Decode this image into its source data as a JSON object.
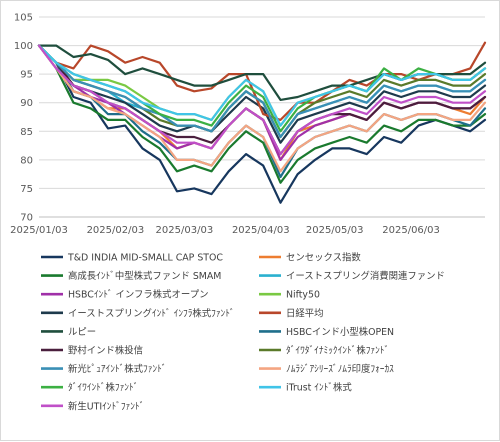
{
  "chart_data": {
    "type": "line",
    "title": "",
    "xlabel": "",
    "ylabel": "",
    "ylim": [
      70,
      105
    ],
    "yticks": [
      70,
      75,
      80,
      85,
      90,
      95,
      100,
      105
    ],
    "xlim": [
      "2025-01-03",
      "2025-07-03"
    ],
    "xticks": [
      "2025/01/03",
      "2025/02/03",
      "2025/03/03",
      "2025/04/03",
      "2025/05/03",
      "2025/06/03"
    ],
    "grid": "horizontal",
    "legend_position": "bottom",
    "x": [
      "2025-01-03",
      "2025-01-10",
      "2025-01-17",
      "2025-01-24",
      "2025-01-31",
      "2025-02-07",
      "2025-02-14",
      "2025-02-21",
      "2025-02-28",
      "2025-03-07",
      "2025-03-14",
      "2025-03-21",
      "2025-03-28",
      "2025-04-04",
      "2025-04-11",
      "2025-04-18",
      "2025-04-25",
      "2025-05-02",
      "2025-05-09",
      "2025-05-16",
      "2025-05-23",
      "2025-05-30",
      "2025-06-06",
      "2025-06-13",
      "2025-06-20",
      "2025-06-27",
      "2025-07-03"
    ],
    "series": [
      {
        "name": "T&D INDIA MID-SMALL CAP STOC",
        "color": "#17375e",
        "values": [
          100,
          97,
          91,
          90,
          85.5,
          86,
          82,
          80,
          74.5,
          75,
          74,
          78,
          81,
          79,
          72.5,
          77.5,
          80,
          82,
          82,
          81,
          84,
          83,
          86,
          87,
          86,
          85,
          87
        ]
      },
      {
        "name": "センセックス指数",
        "color": "#ed7d31",
        "values": [
          100,
          97,
          92,
          91,
          89,
          89,
          87,
          85,
          82,
          83,
          82,
          86,
          89,
          87,
          80,
          85,
          86,
          87,
          88,
          87,
          90,
          89,
          90,
          90,
          89,
          88,
          91
        ]
      },
      {
        "name": "高成長ｲﾝﾄﾞ中型株式ファンド SMAM",
        "color": "#1a7a2e",
        "values": [
          100,
          96,
          90,
          89,
          87,
          87,
          84,
          82,
          78,
          79,
          78,
          82,
          85,
          83,
          76,
          80,
          82,
          83,
          84,
          83,
          86,
          85,
          87,
          87,
          86,
          86,
          88
        ]
      },
      {
        "name": "イーストスプリング消費関連ファンド",
        "color": "#2ab0cf",
        "values": [
          100,
          97,
          94,
          93,
          92,
          90,
          89,
          88,
          86,
          86,
          85,
          89,
          92,
          90,
          84,
          88,
          89,
          90,
          91,
          90,
          93,
          92,
          93,
          93,
          92,
          92,
          94
        ]
      },
      {
        "name": "HSBCｲﾝﾄﾞ インフラ株式オープン",
        "color": "#a030a8",
        "values": [
          100,
          96,
          93,
          91,
          90,
          88,
          86,
          84,
          82,
          83,
          82,
          86,
          89,
          87,
          80,
          84,
          86,
          87,
          88,
          87,
          90,
          89,
          90,
          90,
          89,
          89,
          91
        ]
      },
      {
        "name": "Nifty50",
        "color": "#7ac943",
        "values": [
          100,
          97,
          94,
          94,
          94,
          93,
          91,
          89,
          88,
          88,
          87,
          91,
          94,
          92,
          86,
          90,
          91,
          92,
          93,
          92,
          95,
          94,
          95,
          95,
          94,
          94,
          96
        ]
      },
      {
        "name": "イーストスプリングｲﾝﾄﾞ ｲﾝﾌﾗ株式ﾌｧﾝﾄﾞ",
        "color": "#1e3a4c",
        "values": [
          100,
          97,
          93,
          92,
          91,
          90,
          88,
          86,
          85,
          86,
          85,
          88,
          91,
          89,
          83,
          87,
          88,
          89,
          90,
          89,
          92,
          91,
          92,
          92,
          91,
          91,
          93
        ]
      },
      {
        "name": "日経平均",
        "color": "#b8472a",
        "values": [
          100,
          97,
          96,
          100,
          99,
          97,
          98,
          97,
          93,
          92,
          92.5,
          95,
          95,
          88,
          87,
          90,
          90,
          92,
          94,
          93,
          95,
          95,
          94,
          95,
          95,
          96,
          100.5
        ]
      },
      {
        "name": "ルピー",
        "color": "#1f4e3d",
        "values": [
          100,
          100,
          98,
          98.5,
          97.5,
          95,
          96,
          95,
          94,
          93,
          93,
          94,
          95,
          95,
          90.5,
          91,
          92,
          93,
          93,
          94,
          95,
          94,
          95,
          95,
          95,
          95,
          97
        ]
      },
      {
        "name": "HSBCインド小型株OPEN",
        "color": "#1f6f8b",
        "values": [
          100,
          97,
          92,
          91,
          88,
          88,
          85,
          83,
          80,
          80,
          79,
          83,
          86,
          84,
          77,
          82,
          84,
          85,
          86,
          85,
          88,
          87,
          88,
          88,
          87,
          86,
          89
        ]
      },
      {
        "name": "野村インド株投信",
        "color": "#4a1f3d",
        "values": [
          100,
          97,
          93,
          92,
          90,
          89,
          87,
          85,
          84,
          84,
          83,
          86,
          89,
          87,
          81,
          85,
          87,
          88,
          88,
          87,
          90,
          89,
          90,
          90,
          89,
          89,
          91
        ]
      },
      {
        "name": "ﾀﾞｲﾜﾀﾞｲﾅﾐｯｸｲﾝﾄﾞ株ﾌｧﾝﾄﾞ",
        "color": "#5a7a2a",
        "values": [
          100,
          97,
          94,
          93,
          92,
          91,
          89,
          87,
          86,
          86,
          85,
          89,
          92,
          90,
          84,
          88,
          90,
          91,
          92,
          91,
          94,
          93,
          94,
          94,
          93,
          93,
          95
        ]
      },
      {
        "name": "新光ﾋﾟｭｱｲﾝﾄﾞ株式ﾌｧﾝﾄﾞ",
        "color": "#3a8fb5",
        "values": [
          100,
          97,
          94,
          93,
          92,
          91,
          89,
          88,
          86,
          86,
          85,
          89,
          92,
          90,
          84,
          88,
          89,
          90,
          91,
          90,
          93,
          92,
          93,
          93,
          92,
          92,
          94
        ]
      },
      {
        "name": "ﾉﾑﾗｼﾞｱｼﾘｰｽﾞﾉﾑﾗ印度ﾌｫｰｶｽ",
        "color": "#f4a582",
        "values": [
          100,
          96,
          92,
          91,
          89,
          88,
          86,
          84,
          80,
          80,
          79,
          83,
          86,
          84,
          78,
          82,
          84,
          85,
          86,
          85,
          88,
          87,
          88,
          88,
          87,
          87,
          90
        ]
      },
      {
        "name": "ﾀﾞｲﾜｲﾝﾄﾞ株ﾌｧﾝﾄﾞ",
        "color": "#3cb043",
        "values": [
          100,
          97,
          95,
          94,
          93,
          92,
          90,
          88,
          87,
          87,
          86,
          90,
          93,
          91,
          85,
          89,
          91,
          92,
          93,
          92,
          96,
          94,
          96,
          95,
          94,
          94,
          96
        ]
      },
      {
        "name": "iTrust ｲﾝﾄﾞ株式",
        "color": "#40c4e8",
        "values": [
          100,
          97,
          95,
          94,
          93,
          92,
          90,
          89,
          88,
          88,
          87,
          91,
          94,
          92,
          86,
          90,
          91,
          92,
          93,
          92,
          95,
          94,
          95,
          95,
          94,
          94,
          96
        ]
      },
      {
        "name": "新生UTIｲﾝﾄﾞﾌｧﾝﾄﾞ",
        "color": "#c050c8",
        "values": [
          100,
          96,
          93,
          92,
          90,
          89,
          87,
          85,
          83,
          83,
          82,
          86,
          89,
          87,
          81,
          85,
          87,
          88,
          89,
          88,
          91,
          90,
          91,
          91,
          90,
          90,
          92
        ]
      }
    ]
  }
}
